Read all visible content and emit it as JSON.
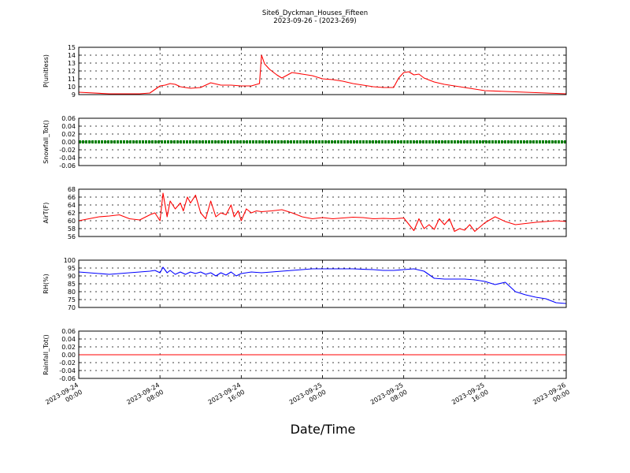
{
  "chart_data": {
    "type": "line",
    "title": "Site6_Dyckman_Houses_Fifteen",
    "subtitle": "2023-09-26 - (2023-269)",
    "xlabel": "Date/Time",
    "x_ticks": [
      [
        "2023-09-24",
        "00:00"
      ],
      [
        "2023-09-24",
        "08:00"
      ],
      [
        "2023-09-24",
        "16:00"
      ],
      [
        "2023-09-25",
        "00:00"
      ],
      [
        "2023-09-25",
        "08:00"
      ],
      [
        "2023-09-25",
        "16:00"
      ],
      [
        "2023-09-26",
        "00:00"
      ]
    ],
    "x_range_hours": [
      0,
      48
    ],
    "panels": [
      {
        "ylabel": "P(unitless)",
        "ylim": [
          9,
          15
        ],
        "yticks": [
          9,
          10,
          11,
          12,
          13,
          14,
          15
        ],
        "color": "#ff0000",
        "x": [
          0,
          3,
          6,
          7,
          8,
          8.5,
          9,
          9.5,
          10,
          11,
          12,
          13,
          14,
          15,
          16,
          17,
          17.8,
          18,
          18.3,
          18.8,
          19.5,
          20,
          21,
          22,
          23,
          24,
          25,
          26,
          27,
          28,
          29,
          30,
          31,
          31.5,
          32,
          32.5,
          33,
          33.5,
          34,
          35,
          36,
          37,
          38,
          39,
          40,
          42,
          44,
          46,
          48
        ],
        "y": [
          9.3,
          9.1,
          9.1,
          9.2,
          10.1,
          10.2,
          10.4,
          10.3,
          10.0,
          9.8,
          9.9,
          10.5,
          10.2,
          10.2,
          10.1,
          10.1,
          10.4,
          14.0,
          12.9,
          12.2,
          11.5,
          11.1,
          11.8,
          11.6,
          11.4,
          11.0,
          10.9,
          10.7,
          10.4,
          10.2,
          10.0,
          9.9,
          9.9,
          11.1,
          11.8,
          11.9,
          11.5,
          11.6,
          11.1,
          10.6,
          10.3,
          10.1,
          9.9,
          9.7,
          9.5,
          9.4,
          9.3,
          9.2,
          9.1
        ]
      },
      {
        "ylabel": "Snowfall_Tot()",
        "ylim": [
          -0.06,
          0.06
        ],
        "yticks": [
          -0.06,
          -0.04,
          -0.02,
          0.0,
          0.02,
          0.04,
          0.06
        ],
        "color": "#008000",
        "marker": "dots",
        "x": [
          0,
          48
        ],
        "y": [
          0,
          0
        ]
      },
      {
        "ylabel": "AirT(F)",
        "ylim": [
          56,
          68
        ],
        "yticks": [
          56,
          58,
          60,
          62,
          64,
          66,
          68
        ],
        "color": "#ff0000",
        "x": [
          0,
          1,
          2,
          3,
          4,
          5,
          6,
          7,
          7.5,
          8,
          8.3,
          8.7,
          9,
          9.5,
          10,
          10.3,
          10.7,
          11,
          11.5,
          12,
          12.5,
          13,
          13.5,
          14,
          14.5,
          15,
          15.3,
          15.7,
          16,
          16.5,
          17,
          17.5,
          18,
          19,
          20,
          21,
          22,
          23,
          24,
          25,
          26,
          27,
          28,
          29,
          30,
          31,
          32,
          33,
          33.5,
          34,
          34.5,
          35,
          35.5,
          36,
          36.5,
          37,
          37.5,
          38,
          38.5,
          39,
          40,
          41,
          42,
          43,
          44,
          45,
          46,
          47,
          48
        ],
        "y": [
          60,
          60.5,
          61,
          61.2,
          61.5,
          60.5,
          60.2,
          61.5,
          62,
          60,
          67,
          61,
          65,
          63,
          64.5,
          62.5,
          66,
          64.5,
          66.5,
          62,
          60.5,
          65,
          61,
          62,
          61.5,
          64,
          61,
          62.5,
          60,
          63,
          62,
          62.5,
          62.3,
          62.5,
          62.8,
          62,
          61,
          60.5,
          60.8,
          60.5,
          60.7,
          60.9,
          60.8,
          60.5,
          60.6,
          60.5,
          60.7,
          57.5,
          60.5,
          58,
          59,
          57.8,
          60.5,
          59,
          60.5,
          57.3,
          58,
          57.6,
          59,
          57.3,
          59.5,
          61,
          59.8,
          59,
          59.3,
          59.6,
          59.8,
          60,
          59.8
        ]
      },
      {
        "ylabel": "RH(%)",
        "ylim": [
          70,
          100
        ],
        "yticks": [
          70,
          75,
          80,
          85,
          90,
          95,
          100
        ],
        "color": "#0000ff",
        "x": [
          0,
          1,
          2,
          3,
          4,
          5,
          6,
          7,
          7.5,
          8,
          8.3,
          8.7,
          9,
          9.5,
          10,
          10.5,
          11,
          11.5,
          12,
          12.5,
          13,
          13.5,
          14,
          14.5,
          15,
          15.5,
          16,
          16.5,
          17,
          18,
          19,
          20,
          21,
          22,
          23,
          24,
          25,
          26,
          27,
          28,
          29,
          30,
          31,
          32,
          33,
          34,
          35,
          36,
          37,
          38,
          39,
          40,
          41,
          42,
          43,
          44,
          45,
          46,
          47,
          48
        ],
        "y": [
          92.5,
          92,
          91.5,
          91,
          91.5,
          92,
          92.5,
          93,
          93.5,
          92,
          95.5,
          92,
          93.5,
          91,
          92.5,
          91,
          92.5,
          91.5,
          92.5,
          91,
          92,
          90,
          92,
          90.5,
          92.5,
          90,
          91.5,
          92,
          92.5,
          92,
          92.5,
          93,
          93.5,
          94,
          94.5,
          94.5,
          94.5,
          94.5,
          94.5,
          94.2,
          94,
          93.5,
          93.5,
          94,
          94.5,
          93,
          88.5,
          88,
          88,
          88,
          87.5,
          86.5,
          84.5,
          86,
          80,
          78,
          76.5,
          75.5,
          73,
          72.5
        ]
      },
      {
        "ylabel": "Rainfall_Tot()",
        "ylim": [
          -0.06,
          0.06
        ],
        "yticks": [
          -0.06,
          -0.04,
          -0.02,
          0.0,
          0.02,
          0.04,
          0.06
        ],
        "color": "#ff0000",
        "x": [
          0,
          48
        ],
        "y": [
          0,
          0
        ]
      }
    ]
  }
}
